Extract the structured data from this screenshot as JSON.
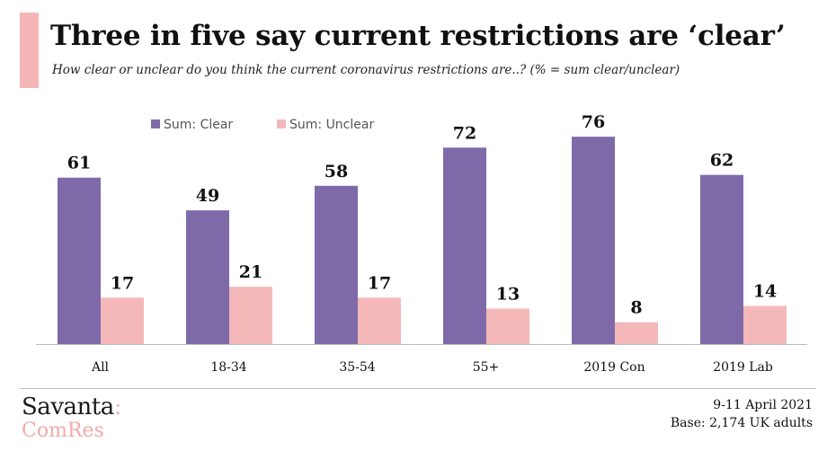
{
  "header": {
    "title": "Three in five say current restrictions are ‘clear’",
    "subtitle": "How clear or unclear do you think the current coronavirus restrictions are..? (% = sum clear/unclear)"
  },
  "colors": {
    "accent": "#f4b5b6",
    "clear": "#7f6aa9",
    "unclear": "#f5b8b9"
  },
  "chart_data": {
    "type": "bar",
    "categories": [
      "All",
      "18-34",
      "35-54",
      "55+",
      "2019 Con",
      "2019 Lab"
    ],
    "series": [
      {
        "name": "Sum: Clear",
        "values": [
          61,
          49,
          58,
          72,
          76,
          62
        ],
        "color": "#7f6aa9"
      },
      {
        "name": "Sum: Unclear",
        "values": [
          17,
          21,
          17,
          13,
          8,
          14
        ],
        "color": "#f5b8b9"
      }
    ],
    "ylim": [
      0,
      80
    ],
    "legend": "top-left",
    "grid": false,
    "data_labels": true
  },
  "footer": {
    "logo_top": "Savanta",
    "logo_colon": ":",
    "logo_bottom": "ComRes",
    "date": "9-11 April 2021",
    "base": "Base: 2,174 UK adults"
  }
}
